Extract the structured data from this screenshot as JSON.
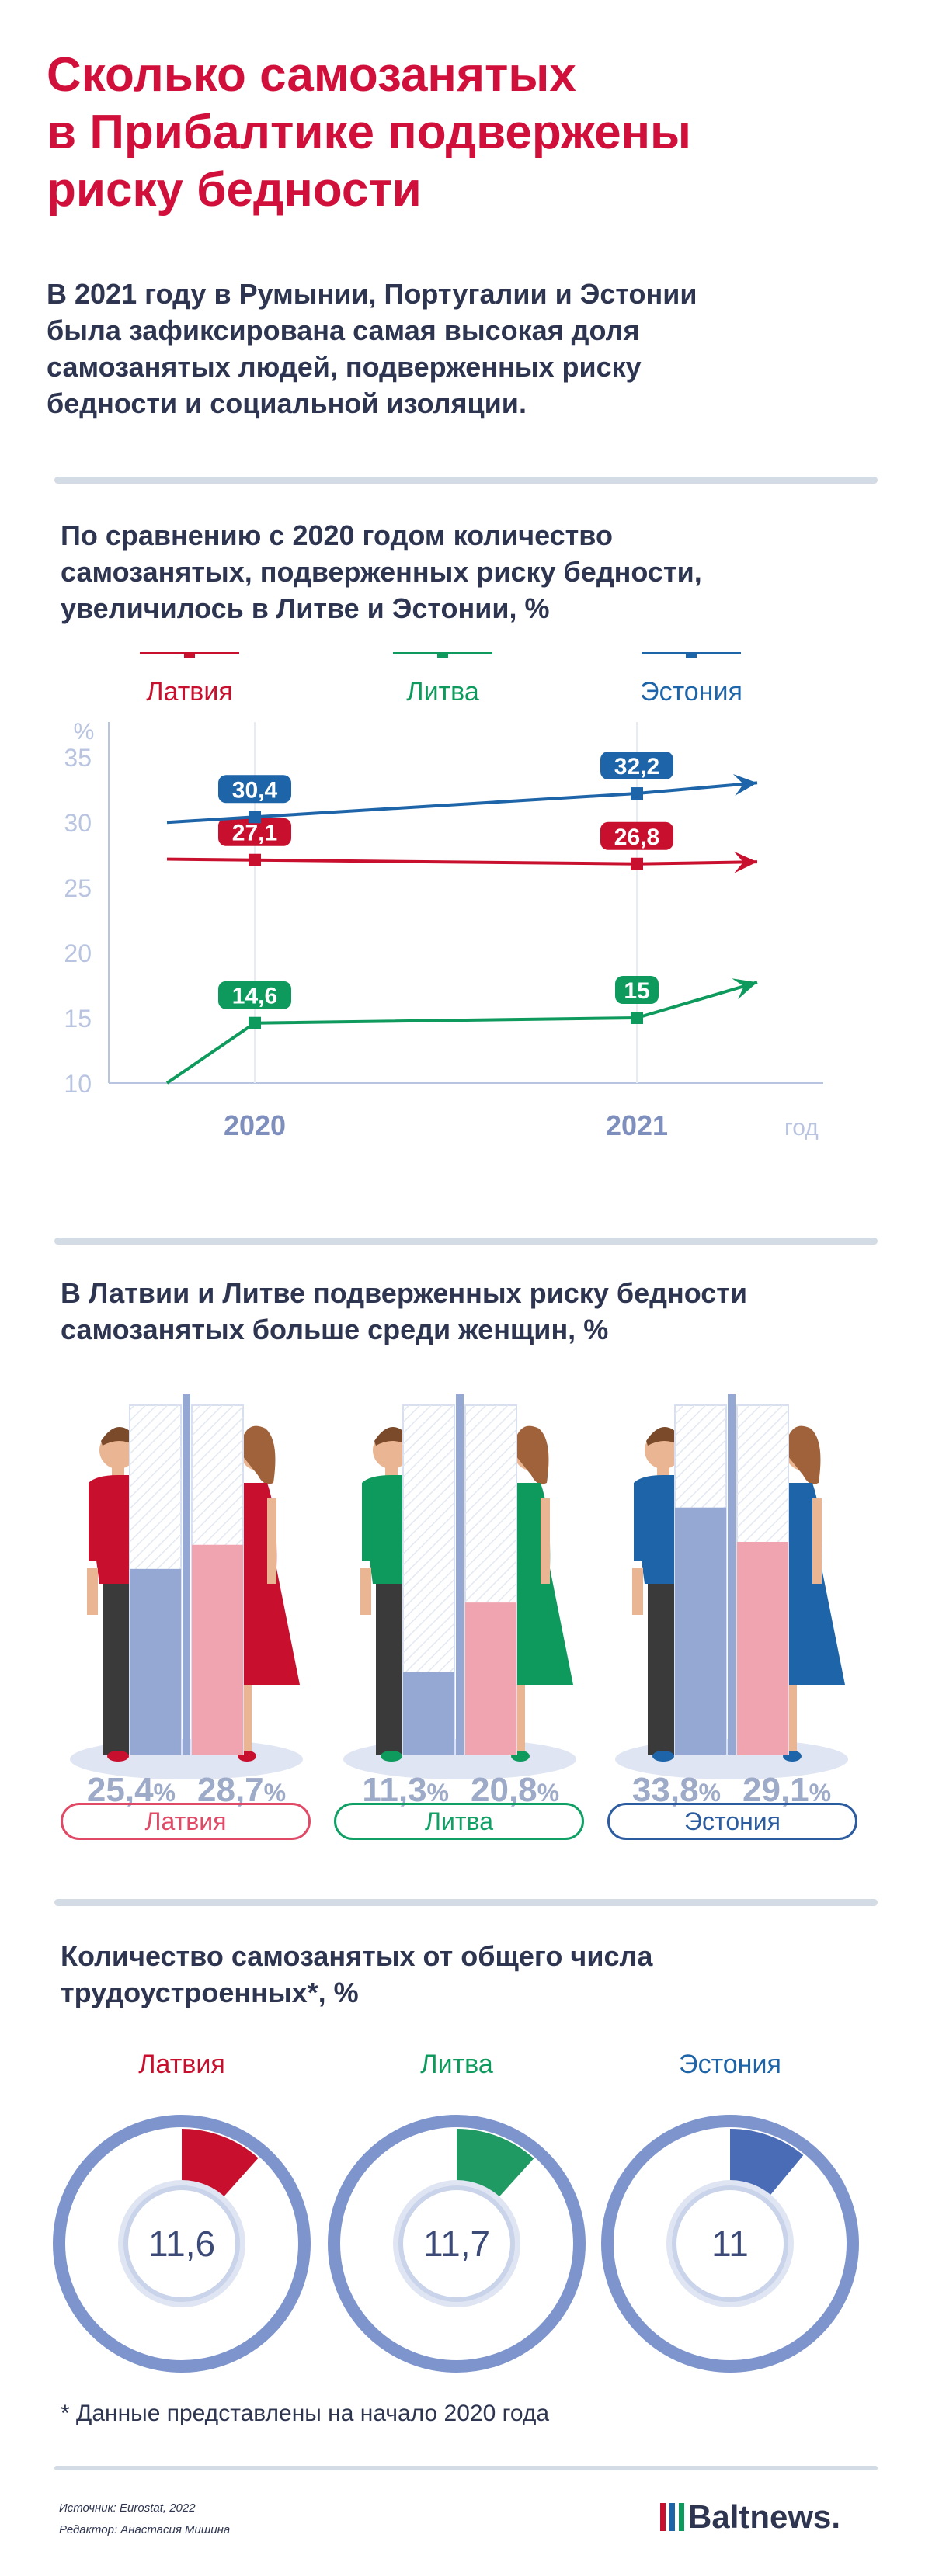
{
  "title_lines": [
    "Сколько самозанятых",
    "в Прибалтике подвержены",
    "риску бедности"
  ],
  "lead_lines": [
    "В 2021 году в Румынии, Португалии и Эстонии",
    "была зафиксирована самая высокая доля",
    "самозанятых людей, подверженных риску",
    "бедности и социальной изоляции."
  ],
  "colors": {
    "latvia": "#c8102e",
    "lithuania": "#0e9a5c",
    "estonia": "#1d64a8",
    "accent_red": "#d0103a",
    "axis": "#b9c4e0",
    "female_bar": "#f0a4b0",
    "male_bar": "#95a7d3"
  },
  "chart_data": [
    {
      "type": "line",
      "title_lines": [
        "По сравнению с 2020 годом количество",
        "самозанятых, подверженных риску бедности,",
        "увеличилось в Литве и Эстонии, %"
      ],
      "x": [
        "2020",
        "2021"
      ],
      "xlabel": "год",
      "ylabel": "%",
      "ylim": [
        10,
        35
      ],
      "yticks": [
        10,
        15,
        20,
        25,
        30,
        35
      ],
      "legend_position": "top",
      "series": [
        {
          "name": "Латвия",
          "color": "#c8102e",
          "values": [
            27.1,
            26.8
          ],
          "labels": [
            "27,1",
            "26,8"
          ]
        },
        {
          "name": "Литва",
          "color": "#0e9a5c",
          "values": [
            14.6,
            15
          ],
          "labels": [
            "14,6",
            "15"
          ]
        },
        {
          "name": "Эстония",
          "color": "#1d64a8",
          "values": [
            30.4,
            32.2
          ],
          "labels": [
            "30,4",
            "32,2"
          ]
        }
      ]
    },
    {
      "type": "bar",
      "title_lines": [
        "В Латвии и Литве подверженных риску бедности",
        "самозанятых больше среди женщин, %"
      ],
      "categories": [
        "Латвия",
        "Литва",
        "Эстония"
      ],
      "series": [
        {
          "name": "men",
          "values": [
            25.4,
            11.3,
            33.8
          ],
          "labels": [
            "25,4",
            "11,3",
            "33,8"
          ]
        },
        {
          "name": "women",
          "values": [
            28.7,
            20.8,
            29.1
          ],
          "labels": [
            "28,7",
            "20,8",
            "29,1"
          ]
        }
      ],
      "unit": "%"
    },
    {
      "type": "pie",
      "title_lines": [
        "Количество самозанятых от общего числа",
        "трудоустроенных*, %"
      ],
      "categories": [
        "Латвия",
        "Литва",
        "Эстония"
      ],
      "values": [
        11.6,
        11.7,
        11
      ],
      "labels": [
        "11,6",
        "11,7",
        "11"
      ]
    }
  ],
  "footnote": "* Данные представлены на начало 2020 года",
  "source": "Источник: Eurostat, 2022",
  "editor": "Редактор: Анастасия Мишина",
  "brand": "Baltnews."
}
